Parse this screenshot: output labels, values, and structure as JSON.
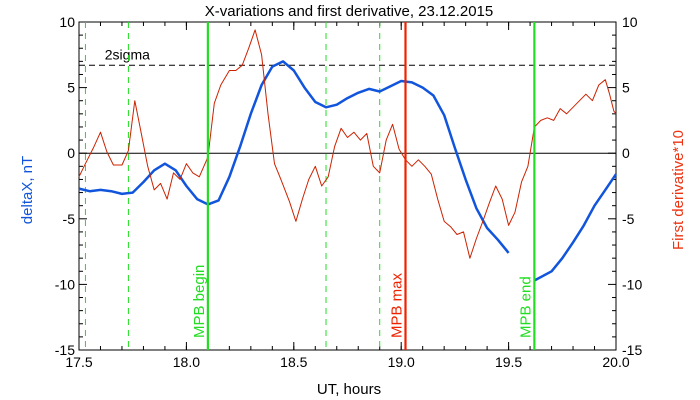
{
  "chart_data": {
    "type": "line",
    "title": "X-variations and first derivative, 23.12.2015",
    "xlabel": "UT, hours",
    "ylabel_left": "deltaX, nT",
    "ylabel_right": "First derivative*10",
    "xlim": [
      17.5,
      20.0
    ],
    "ylim": [
      -15,
      10
    ],
    "x_ticks": [
      17.5,
      18.0,
      18.5,
      19.0,
      19.5,
      20.0
    ],
    "x_tick_labels": [
      "17.5",
      "18.0",
      "18.5",
      "19.0",
      "19.5",
      "20.0"
    ],
    "y_ticks": [
      -15,
      -10,
      -5,
      0,
      5,
      10
    ],
    "y_tick_labels": [
      "-15",
      "-10",
      "-5",
      "0",
      "5",
      "10"
    ],
    "threshold": {
      "label": "2sigma",
      "y": 6.7
    },
    "zero_line": 0,
    "markers": [
      {
        "label": "MPB begin",
        "x": 18.1,
        "color": "#22dd22"
      },
      {
        "label": "MPB max",
        "x": 19.02,
        "color": "#ee2200"
      },
      {
        "label": "MPB end",
        "x": 19.62,
        "color": "#22dd22"
      }
    ],
    "dashed_verticals": [
      17.53,
      17.73,
      18.65,
      18.9
    ],
    "series": [
      {
        "name": "deltaX",
        "color": "#1155dd",
        "segments": [
          [
            [
              17.5,
              -2.7
            ],
            [
              17.55,
              -2.9
            ],
            [
              17.6,
              -2.8
            ],
            [
              17.65,
              -2.9
            ],
            [
              17.7,
              -3.1
            ],
            [
              17.75,
              -3.0
            ],
            [
              17.8,
              -2.2
            ],
            [
              17.85,
              -1.3
            ],
            [
              17.9,
              -0.8
            ],
            [
              17.95,
              -1.3
            ],
            [
              18.0,
              -2.5
            ],
            [
              18.05,
              -3.5
            ],
            [
              18.1,
              -3.9
            ],
            [
              18.15,
              -3.6
            ],
            [
              18.2,
              -1.8
            ],
            [
              18.25,
              0.5
            ],
            [
              18.3,
              3.0
            ],
            [
              18.35,
              5.2
            ],
            [
              18.4,
              6.6
            ],
            [
              18.45,
              7.0
            ],
            [
              18.5,
              6.3
            ],
            [
              18.55,
              5.0
            ],
            [
              18.6,
              3.9
            ],
            [
              18.65,
              3.5
            ],
            [
              18.7,
              3.7
            ],
            [
              18.75,
              4.2
            ],
            [
              18.8,
              4.6
            ],
            [
              18.85,
              4.9
            ],
            [
              18.9,
              4.7
            ],
            [
              18.95,
              5.1
            ],
            [
              19.0,
              5.5
            ],
            [
              19.05,
              5.4
            ],
            [
              19.1,
              5.0
            ],
            [
              19.15,
              4.4
            ],
            [
              19.2,
              2.9
            ],
            [
              19.25,
              0.4
            ],
            [
              19.3,
              -2.0
            ],
            [
              19.35,
              -4.2
            ],
            [
              19.4,
              -5.7
            ],
            [
              19.45,
              -6.6
            ],
            [
              19.5,
              -7.6
            ]
          ],
          [
            [
              19.62,
              -9.7
            ],
            [
              19.7,
              -9.0
            ],
            [
              19.75,
              -8.0
            ],
            [
              19.8,
              -6.8
            ],
            [
              19.85,
              -5.5
            ],
            [
              19.9,
              -4.0
            ],
            [
              19.95,
              -2.8
            ],
            [
              20.0,
              -1.6
            ]
          ]
        ]
      },
      {
        "name": "First derivative",
        "color": "#cc2200",
        "segments": [
          [
            [
              17.5,
              -1.8
            ],
            [
              17.53,
              -0.8
            ],
            [
              17.57,
              0.5
            ],
            [
              17.6,
              1.6
            ],
            [
              17.63,
              0.1
            ],
            [
              17.66,
              -0.9
            ],
            [
              17.7,
              -0.9
            ],
            [
              17.73,
              0.2
            ],
            [
              17.76,
              4.0
            ],
            [
              17.79,
              1.5
            ],
            [
              17.82,
              -1.0
            ],
            [
              17.85,
              -2.8
            ],
            [
              17.88,
              -2.3
            ],
            [
              17.91,
              -3.5
            ],
            [
              17.94,
              -1.5
            ],
            [
              17.97,
              -2.0
            ],
            [
              18.0,
              -0.8
            ],
            [
              18.03,
              -1.5
            ],
            [
              18.06,
              -1.8
            ],
            [
              18.1,
              -0.3
            ],
            [
              18.13,
              3.8
            ],
            [
              18.16,
              5.2
            ],
            [
              18.2,
              6.3
            ],
            [
              18.23,
              6.3
            ],
            [
              18.26,
              6.7
            ],
            [
              18.29,
              8.0
            ],
            [
              18.32,
              9.4
            ],
            [
              18.35,
              7.5
            ],
            [
              18.38,
              3.0
            ],
            [
              18.41,
              -0.8
            ],
            [
              18.44,
              -2.0
            ],
            [
              18.48,
              -3.7
            ],
            [
              18.51,
              -5.2
            ],
            [
              18.54,
              -3.5
            ],
            [
              18.57,
              -2.0
            ],
            [
              18.6,
              -1.0
            ],
            [
              18.63,
              -2.5
            ],
            [
              18.66,
              -1.8
            ],
            [
              18.69,
              0.5
            ],
            [
              18.72,
              1.9
            ],
            [
              18.75,
              1.2
            ],
            [
              18.78,
              1.6
            ],
            [
              18.81,
              1.0
            ],
            [
              18.84,
              1.5
            ],
            [
              18.87,
              -1.0
            ],
            [
              18.9,
              -1.5
            ],
            [
              18.93,
              1.0
            ],
            [
              18.96,
              2.2
            ],
            [
              18.99,
              0.3
            ],
            [
              19.02,
              -0.5
            ],
            [
              19.05,
              -1.0
            ],
            [
              19.08,
              -0.5
            ],
            [
              19.11,
              -1.0
            ],
            [
              19.14,
              -1.6
            ],
            [
              19.17,
              -3.5
            ],
            [
              19.2,
              -5.2
            ],
            [
              19.23,
              -5.6
            ],
            [
              19.26,
              -6.2
            ],
            [
              19.29,
              -6.0
            ],
            [
              19.32,
              -8.0
            ],
            [
              19.35,
              -6.5
            ],
            [
              19.38,
              -5.2
            ],
            [
              19.41,
              -3.8
            ],
            [
              19.44,
              -2.5
            ],
            [
              19.47,
              -3.5
            ],
            [
              19.5,
              -5.5
            ],
            [
              19.53,
              -4.5
            ],
            [
              19.56,
              -2.2
            ],
            [
              19.59,
              -1.0
            ],
            [
              19.62,
              2.0
            ],
            [
              19.65,
              2.5
            ],
            [
              19.68,
              2.7
            ],
            [
              19.71,
              2.5
            ],
            [
              19.74,
              3.4
            ],
            [
              19.77,
              3.0
            ],
            [
              19.8,
              3.5
            ],
            [
              19.83,
              4.0
            ],
            [
              19.86,
              4.5
            ],
            [
              19.89,
              4.0
            ],
            [
              19.92,
              5.2
            ],
            [
              19.95,
              5.6
            ],
            [
              19.97,
              4.5
            ],
            [
              19.99,
              3.2
            ],
            [
              20.0,
              3.0
            ]
          ]
        ]
      }
    ]
  }
}
